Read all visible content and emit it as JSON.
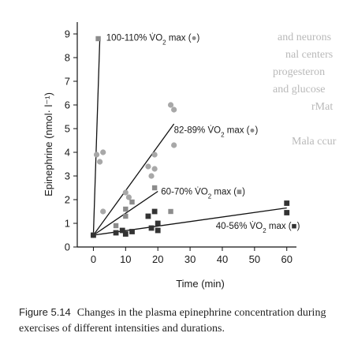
{
  "caption": {
    "label": "Figure 5.14",
    "text": "Changes in the plasma epinephrine concentration during exercises of different intensities and durations."
  },
  "background_text": {
    "lines": [
      "and neurons",
      "nal centers",
      "progesteron",
      "and glucose",
      "rMat",
      "Mala ccur"
    ]
  },
  "colors": {
    "axis": "#111111",
    "marker_square": "#8c8c8c",
    "marker_circle": "#a8a8a8",
    "marker_dark": "#333333",
    "background_text": "#b9b9b9"
  },
  "chart_data": {
    "type": "scatter",
    "title": "",
    "xlabel": "Time (min)",
    "ylabel": "Epinephrine (nmol· l⁻¹)",
    "xlim": [
      -5,
      63
    ],
    "ylim": [
      0,
      9.5
    ],
    "xticks": [
      0,
      10,
      20,
      30,
      40,
      50,
      60
    ],
    "yticks": [
      0,
      1,
      2,
      3,
      4,
      5,
      6,
      7,
      8,
      9
    ],
    "grid": false,
    "legend": "none",
    "series": [
      {
        "name": "100-110% V̇O₂ max",
        "marker": "square",
        "points": [
          [
            1.5,
            8.8
          ]
        ],
        "trend": [
          [
            0,
            0.5
          ],
          [
            2,
            8.8
          ]
        ],
        "annotation": {
          "text": "100-110% V̇O",
          "sub": "2",
          "tail": " max (",
          "symbol": "●",
          "close": ")",
          "x": 4,
          "y": 8.85
        }
      },
      {
        "name": "82-89% V̇O₂ max",
        "marker": "circle",
        "points": [
          [
            0,
            0.5
          ],
          [
            1,
            3.9
          ],
          [
            2,
            3.6
          ],
          [
            3,
            1.5
          ],
          [
            3,
            4.0
          ],
          [
            10,
            2.3
          ],
          [
            11,
            2.1
          ],
          [
            17,
            3.4
          ],
          [
            18,
            3.0
          ],
          [
            19,
            3.9
          ],
          [
            19,
            3.3
          ],
          [
            24,
            6.0
          ],
          [
            25,
            5.8
          ],
          [
            25,
            4.3
          ]
        ],
        "trend": [
          [
            0,
            0.5
          ],
          [
            25,
            5.2
          ]
        ],
        "annotation": {
          "text": "82-89% V̇O",
          "sub": "2",
          "tail": " max (",
          "symbol": "●",
          "close": ")",
          "x": 25,
          "y": 4.95
        }
      },
      {
        "name": "60-70% V̇O₂ max",
        "marker": "square",
        "points": [
          [
            7,
            0.9
          ],
          [
            10,
            1.3
          ],
          [
            10,
            1.6
          ],
          [
            12,
            1.9
          ],
          [
            19,
            2.5
          ],
          [
            24,
            1.5
          ]
        ],
        "trend": [
          [
            0,
            0.5
          ],
          [
            20,
            2.35
          ]
        ],
        "annotation": {
          "text": "60-70% V̇O",
          "sub": "2",
          "tail": " max (",
          "symbol": "■",
          "close": ")",
          "x": 21,
          "y": 2.35
        }
      },
      {
        "name": "40-56% V̇O₂ max",
        "marker": "square-dark",
        "points": [
          [
            0,
            0.5
          ],
          [
            7,
            0.6
          ],
          [
            9,
            0.7
          ],
          [
            10,
            0.55
          ],
          [
            12,
            0.65
          ],
          [
            17,
            1.3
          ],
          [
            18,
            0.8
          ],
          [
            19,
            1.5
          ],
          [
            20,
            1.0
          ],
          [
            20,
            0.7
          ],
          [
            60,
            1.85
          ],
          [
            60,
            1.45
          ]
        ],
        "trend": [
          [
            0,
            0.5
          ],
          [
            60,
            1.65
          ]
        ],
        "annotation": {
          "text": "40-56% V̇O",
          "sub": "2",
          "tail": " max (",
          "symbol": "■",
          "close": ")",
          "x": 38,
          "y": 0.9
        }
      }
    ]
  }
}
